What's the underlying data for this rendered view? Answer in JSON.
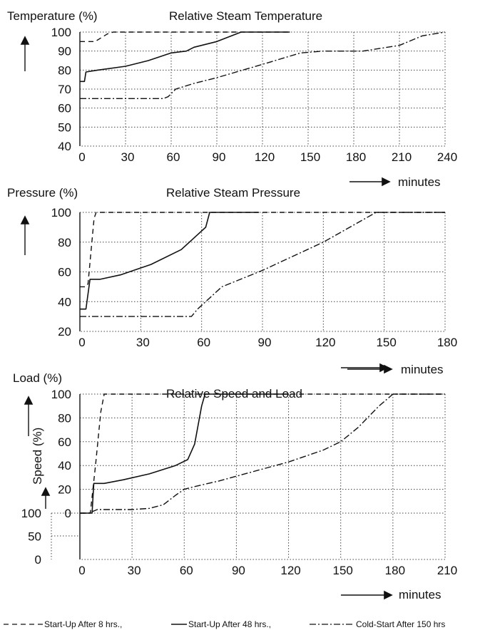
{
  "legend": {
    "items": [
      {
        "label": "Start-Up After 8 hrs.,",
        "style": "dash"
      },
      {
        "label": "Start-Up After 48 hrs.,",
        "style": "solid"
      },
      {
        "label": "Cold-Start After 150 hrs",
        "style": "dashdot"
      }
    ]
  },
  "colors": {
    "ink": "#111111",
    "grid": "#444444",
    "background": "#ffffff"
  },
  "chart_data": [
    {
      "type": "line",
      "title": "Relative Steam Temperature",
      "ylabel": "Temperature (%)",
      "xlabel": "minutes",
      "xlim": [
        0,
        240
      ],
      "ylim": [
        40,
        100
      ],
      "xticks": [
        "0",
        "30",
        "60",
        "90",
        "120",
        "150",
        "180",
        "210",
        "240"
      ],
      "yticks": [
        "40",
        "50",
        "60",
        "70",
        "80",
        "90",
        "100"
      ],
      "grid": true,
      "series": [
        {
          "style": "dash",
          "x": [
            0,
            10,
            14,
            18,
            22,
            138
          ],
          "y": [
            95,
            95,
            97,
            99,
            100,
            100
          ]
        },
        {
          "style": "solid",
          "x": [
            0,
            3,
            4,
            12,
            30,
            45,
            60,
            70,
            75,
            90,
            106,
            138
          ],
          "y": [
            74,
            74,
            79,
            80,
            82,
            85,
            89,
            90,
            92,
            95,
            100,
            100
          ]
        },
        {
          "style": "dashdot",
          "x": [
            0,
            55,
            58,
            63,
            75,
            90,
            120,
            145,
            160,
            186,
            210,
            225,
            240
          ],
          "y": [
            65,
            65,
            66,
            70,
            73,
            76,
            83,
            89,
            90,
            90,
            93,
            98,
            100
          ]
        }
      ]
    },
    {
      "type": "line",
      "title": "Relative Steam Pressure",
      "ylabel": "Pressure (%)",
      "xlabel": "minutes",
      "xlim": [
        0,
        180
      ],
      "ylim": [
        20,
        100
      ],
      "xticks": [
        "0",
        "30",
        "60",
        "90",
        "120",
        "150",
        "180"
      ],
      "yticks": [
        "20",
        "40",
        "60",
        "80",
        "100"
      ],
      "grid": true,
      "series": [
        {
          "style": "dash",
          "x": [
            0,
            3,
            4,
            7,
            8,
            180
          ],
          "y": [
            50,
            50,
            52,
            96,
            100,
            100
          ]
        },
        {
          "style": "solid",
          "x": [
            0,
            3,
            5,
            10,
            20,
            35,
            50,
            58,
            62,
            64,
            88
          ],
          "y": [
            35,
            35,
            55,
            55,
            58,
            65,
            75,
            85,
            90,
            100,
            100
          ]
        },
        {
          "style": "dashdot",
          "x": [
            0,
            55,
            58,
            62,
            70,
            90,
            120,
            146,
            180
          ],
          "y": [
            30,
            30,
            35,
            40,
            50,
            61,
            80,
            100,
            100
          ]
        }
      ]
    },
    {
      "type": "line",
      "title": "Relative Speed and Load",
      "ylabel": "Load (%)",
      "ylabel2": "Speed (%)",
      "xlabel": "minutes",
      "xlim": [
        0,
        210
      ],
      "ylim": [
        0,
        100
      ],
      "xticks": [
        "0",
        "30",
        "60",
        "90",
        "120",
        "150",
        "180",
        "210"
      ],
      "yticks": [
        "0",
        "20",
        "40",
        "60",
        "80",
        "100"
      ],
      "speed_yticks": [
        "0",
        "50",
        "100"
      ],
      "grid": true,
      "series": [
        {
          "style": "dash",
          "x": [
            0,
            6,
            9,
            12,
            14,
            210
          ],
          "y": [
            0,
            0,
            40,
            85,
            100,
            100
          ]
        },
        {
          "style": "solid",
          "x": [
            0,
            7,
            8,
            14,
            25,
            40,
            55,
            62,
            66,
            70,
            72,
            120
          ],
          "y": [
            0,
            0,
            25,
            25,
            28,
            33,
            40,
            45,
            58,
            90,
            100,
            100
          ]
        },
        {
          "style": "dashdot",
          "x": [
            0,
            5,
            10,
            30,
            40,
            48,
            55,
            60,
            65,
            80,
            100,
            120,
            140,
            150,
            160,
            172,
            180,
            210
          ],
          "y": [
            0,
            0,
            3,
            3,
            4,
            7,
            15,
            20,
            22,
            27,
            35,
            43,
            53,
            60,
            72,
            90,
            100,
            100
          ]
        }
      ]
    }
  ]
}
